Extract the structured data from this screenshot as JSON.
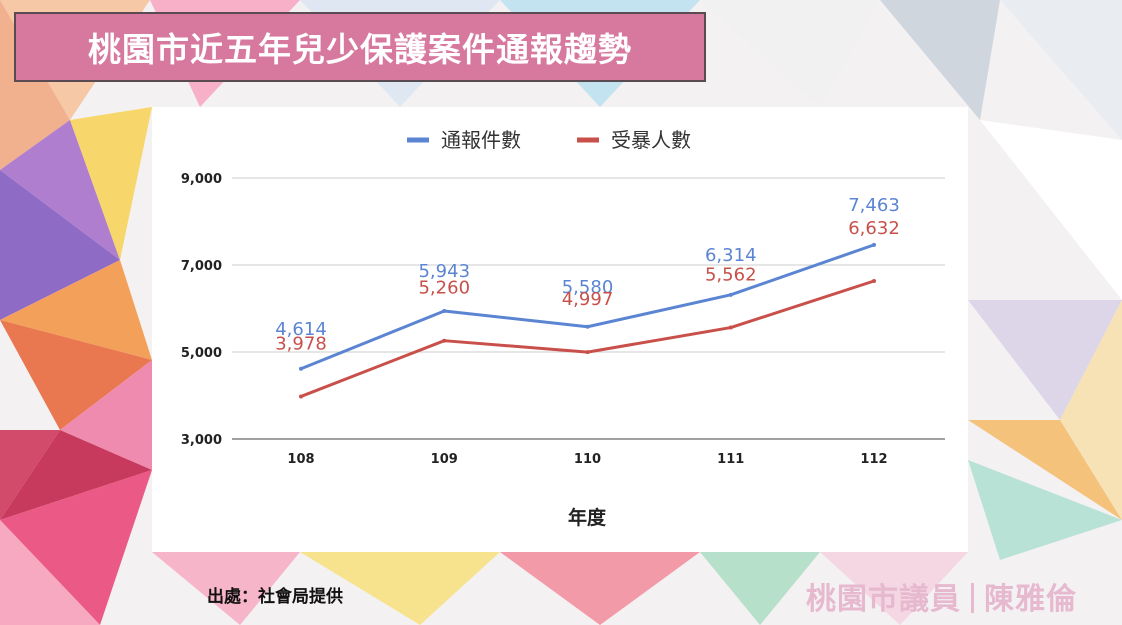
{
  "title": "桃園市近五年兒少保護案件通報趨勢",
  "source": "出處：社會局提供",
  "watermark": {
    "left": "桃園市議員",
    "right": "陳雅倫"
  },
  "colors": {
    "title_bg": "#d7799f",
    "series_blue": "#5b85d2",
    "series_red": "#c9504a",
    "watermark": "#e6b9cf"
  },
  "chart_data": {
    "type": "line",
    "categories": [
      "108",
      "109",
      "110",
      "111",
      "112"
    ],
    "series": [
      {
        "name": "通報件數",
        "color": "#5b85d2",
        "values": [
          4614,
          5943,
          5580,
          6314,
          7463
        ],
        "labels": [
          "4,614",
          "5,943",
          "5,580",
          "6,314",
          "7,463"
        ]
      },
      {
        "name": "受暴人數",
        "color": "#c9504a",
        "values": [
          3978,
          5260,
          4997,
          5562,
          6632
        ],
        "labels": [
          "3,978",
          "5,260",
          "4,997",
          "5,562",
          "6,632"
        ]
      }
    ],
    "xlabel": "年度",
    "ylabel": "",
    "ylim": [
      3000,
      9000
    ],
    "yticks": [
      3000,
      5000,
      7000,
      9000
    ],
    "ytick_labels": [
      "3,000",
      "5,000",
      "7,000",
      "9,000"
    ],
    "grid": true,
    "legend": "top-center"
  }
}
